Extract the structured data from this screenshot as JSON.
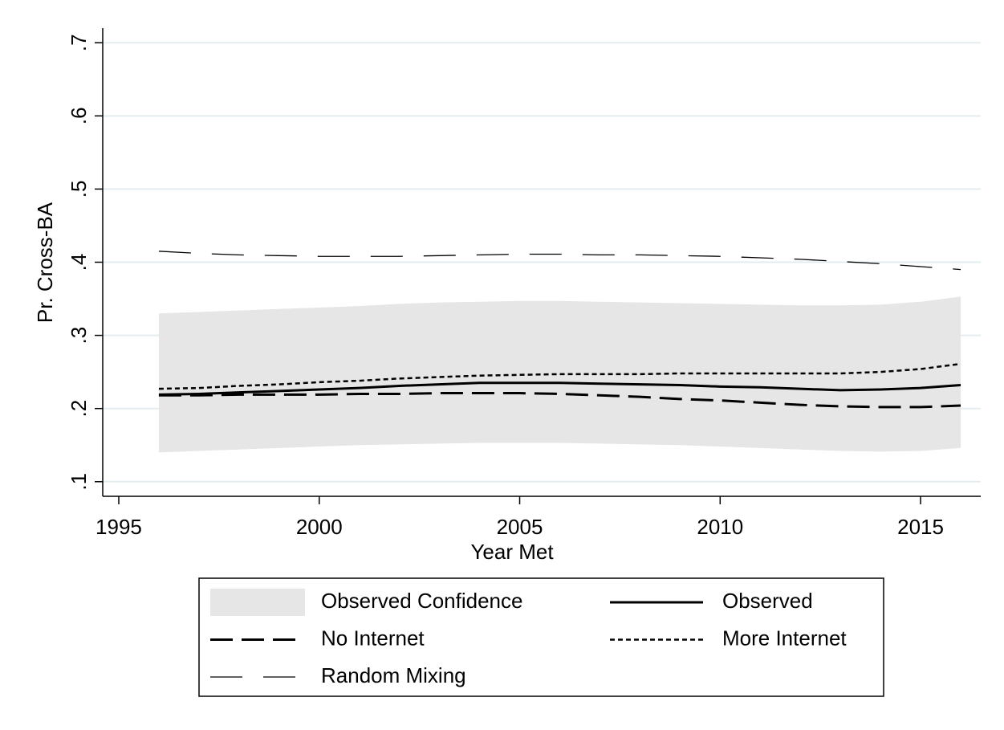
{
  "chart_data": {
    "type": "line",
    "x_label": "Year Met",
    "y_label": "Pr. Cross-BA",
    "x": [
      1996,
      1997,
      1998,
      1999,
      2000,
      2001,
      2002,
      2003,
      2004,
      2005,
      2006,
      2007,
      2008,
      2009,
      2010,
      2011,
      2012,
      2013,
      2014,
      2015,
      2016
    ],
    "xlim": [
      1994.6,
      2016.5
    ],
    "xticks": [
      1995,
      2000,
      2005,
      2010,
      2015
    ],
    "ylim": [
      0.08,
      0.72
    ],
    "yticks": [
      {
        "value": 0.1,
        "label": ".1"
      },
      {
        "value": 0.2,
        "label": ".2"
      },
      {
        "value": 0.3,
        "label": ".3"
      },
      {
        "value": 0.4,
        "label": ".4"
      },
      {
        "value": 0.5,
        "label": ".5"
      },
      {
        "value": 0.6,
        "label": ".6"
      },
      {
        "value": 0.7,
        "label": ".7"
      }
    ],
    "grid": true,
    "grid_color": "#e3edf0",
    "band": {
      "name": "Observed Confidence",
      "color": "#e6e6e6",
      "upper": [
        0.33,
        0.332,
        0.334,
        0.336,
        0.338,
        0.34,
        0.343,
        0.345,
        0.346,
        0.347,
        0.347,
        0.346,
        0.345,
        0.344,
        0.343,
        0.342,
        0.341,
        0.341,
        0.342,
        0.346,
        0.353
      ],
      "lower": [
        0.14,
        0.142,
        0.144,
        0.146,
        0.148,
        0.15,
        0.151,
        0.152,
        0.153,
        0.153,
        0.153,
        0.152,
        0.151,
        0.15,
        0.148,
        0.146,
        0.144,
        0.142,
        0.141,
        0.142,
        0.146
      ]
    },
    "series": [
      {
        "name": "Observed",
        "color": "#000000",
        "dash": "none",
        "width": 3,
        "values": [
          0.219,
          0.22,
          0.222,
          0.224,
          0.226,
          0.228,
          0.231,
          0.233,
          0.235,
          0.235,
          0.235,
          0.234,
          0.233,
          0.232,
          0.23,
          0.229,
          0.227,
          0.225,
          0.226,
          0.228,
          0.232
        ]
      },
      {
        "name": "No Internet",
        "color": "#000000",
        "dash": "28 11",
        "width": 3,
        "values": [
          0.218,
          0.218,
          0.219,
          0.219,
          0.219,
          0.22,
          0.22,
          0.221,
          0.221,
          0.221,
          0.22,
          0.218,
          0.216,
          0.213,
          0.211,
          0.208,
          0.205,
          0.203,
          0.202,
          0.202,
          0.204
        ]
      },
      {
        "name": "More Internet",
        "color": "#000000",
        "dash": "6 4",
        "width": 2.5,
        "values": [
          0.227,
          0.228,
          0.231,
          0.233,
          0.236,
          0.238,
          0.241,
          0.243,
          0.245,
          0.246,
          0.247,
          0.247,
          0.247,
          0.248,
          0.248,
          0.248,
          0.248,
          0.248,
          0.25,
          0.254,
          0.261
        ]
      },
      {
        "name": "Random Mixing",
        "color": "#000000",
        "dash": "40 26",
        "width": 1.3,
        "values": [
          0.415,
          0.412,
          0.41,
          0.409,
          0.408,
          0.408,
          0.408,
          0.409,
          0.41,
          0.411,
          0.411,
          0.41,
          0.41,
          0.409,
          0.408,
          0.406,
          0.404,
          0.401,
          0.398,
          0.394,
          0.39
        ]
      }
    ],
    "legend": "bottom"
  }
}
